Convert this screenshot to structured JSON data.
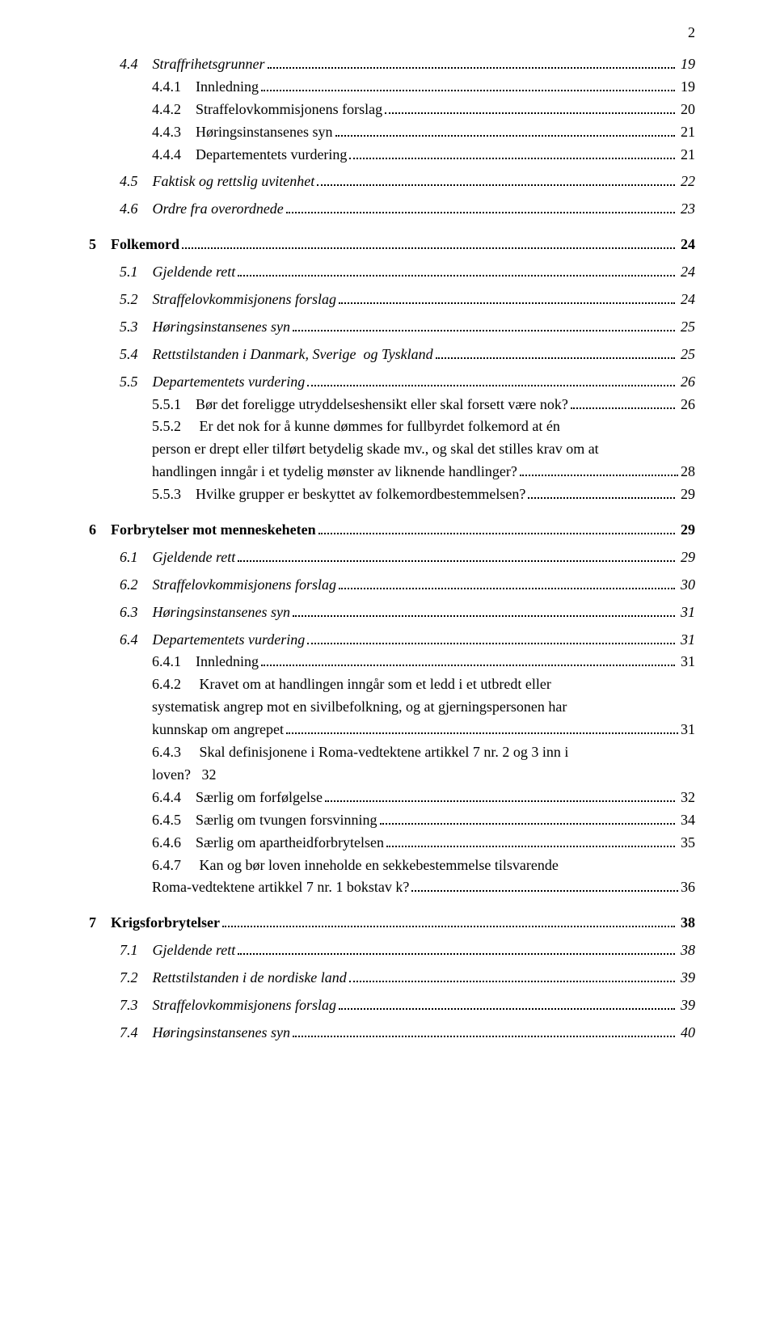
{
  "page_number": "2",
  "entries": [
    {
      "k": "line",
      "cls": "indent1 italic",
      "label": "4.4",
      "title": "Straffrihetsgrunner",
      "page": "19",
      "gap": "s"
    },
    {
      "k": "line",
      "cls": "indent2",
      "label": "4.4.1",
      "title": "Innledning",
      "page": "19"
    },
    {
      "k": "line",
      "cls": "indent2",
      "label": "4.4.2",
      "title": "Straffelovkommisjonens forslag",
      "page": "20"
    },
    {
      "k": "line",
      "cls": "indent2",
      "label": "4.4.3",
      "title": "Høringsinstansenes syn",
      "page": "21"
    },
    {
      "k": "line",
      "cls": "indent2",
      "label": "4.4.4",
      "title": "Departementets vurdering",
      "page": "21",
      "gap_after": "s"
    },
    {
      "k": "line",
      "cls": "indent1 italic",
      "label": "4.5",
      "title": "Faktisk og rettslig uvitenhet",
      "page": "22",
      "gap_after": "s"
    },
    {
      "k": "line",
      "cls": "indent1 italic",
      "label": "4.6",
      "title": "Ordre fra overordnede",
      "page": "23",
      "gap_after": "m"
    },
    {
      "k": "line",
      "cls": "bold",
      "label": "5",
      "title": "Folkemord",
      "page": "24",
      "gap_after": "s"
    },
    {
      "k": "line",
      "cls": "indent1 italic",
      "label": "5.1",
      "title": "Gjeldende rett",
      "page": "24",
      "gap_after": "s"
    },
    {
      "k": "line",
      "cls": "indent1 italic",
      "label": "5.2",
      "title": "Straffelovkommisjonens forslag",
      "page": "24",
      "gap_after": "s"
    },
    {
      "k": "line",
      "cls": "indent1 italic",
      "label": "5.3",
      "title": "Høringsinstansenes syn",
      "page": "25",
      "gap_after": "s"
    },
    {
      "k": "line",
      "cls": "indent1 italic",
      "label": "5.4",
      "title": "Rettstilstanden i Danmark, Sverige  og Tyskland",
      "page": "25",
      "gap_after": "s"
    },
    {
      "k": "line",
      "cls": "indent1 italic",
      "label": "5.5",
      "title": "Departementets vurdering",
      "page": "26"
    },
    {
      "k": "line",
      "cls": "indent2",
      "label": "5.5.1",
      "title": "Bør det foreligge utryddelseshensikt eller skal forsett være nok?",
      "page": "26"
    },
    {
      "k": "multi",
      "cls": "indent2",
      "lines": [
        "5.5.2     Er det nok for å kunne dømmes for fullbyrdet folkemord at én",
        "person er drept eller tilført betydelig skade mv., og skal det stilles krav om at",
        "handlingen inngår i et tydelig mønster av liknende handlinger?"
      ],
      "page": "28"
    },
    {
      "k": "line",
      "cls": "indent2",
      "label": "5.5.3",
      "title": "Hvilke grupper er beskyttet av folkemordbestemmelsen?",
      "page": "29",
      "gap_after": "m"
    },
    {
      "k": "line",
      "cls": "bold",
      "label": "6",
      "title": "Forbrytelser mot menneskeheten",
      "page": "29",
      "gap_after": "s"
    },
    {
      "k": "line",
      "cls": "indent1 italic",
      "label": "6.1",
      "title": "Gjeldende rett",
      "page": "29",
      "gap_after": "s"
    },
    {
      "k": "line",
      "cls": "indent1 italic",
      "label": "6.2",
      "title": "Straffelovkommisjonens forslag",
      "page": "30",
      "gap_after": "s"
    },
    {
      "k": "line",
      "cls": "indent1 italic",
      "label": "6.3",
      "title": "Høringsinstansenes syn",
      "page": "31",
      "gap_after": "s"
    },
    {
      "k": "line",
      "cls": "indent1 italic",
      "label": "6.4",
      "title": "Departementets vurdering",
      "page": "31"
    },
    {
      "k": "line",
      "cls": "indent2",
      "label": "6.4.1",
      "title": "Innledning",
      "page": "31"
    },
    {
      "k": "multi",
      "cls": "indent2",
      "lines": [
        "6.4.2     Kravet om at handlingen inngår som et ledd i et utbredt eller",
        "systematisk angrep mot en sivilbefolkning, og at gjerningspersonen har",
        "kunnskap om angrepet"
      ],
      "page": "31"
    },
    {
      "k": "multi",
      "cls": "indent2",
      "lines": [
        "6.4.3     Skal definisjonene i Roma-vedtektene artikkel 7 nr. 2 og 3 inn i",
        "loven?   32"
      ],
      "nopage": true
    },
    {
      "k": "line",
      "cls": "indent2",
      "label": "6.4.4",
      "title": "Særlig om forfølgelse",
      "page": "32"
    },
    {
      "k": "line",
      "cls": "indent2",
      "label": "6.4.5",
      "title": "Særlig om tvungen forsvinning",
      "page": "34"
    },
    {
      "k": "line",
      "cls": "indent2",
      "label": "6.4.6",
      "title": "Særlig om apartheidforbrytelsen",
      "page": "35"
    },
    {
      "k": "multi",
      "cls": "indent2",
      "lines": [
        "6.4.7     Kan og bør loven inneholde en sekkebestemmelse tilsvarende",
        "Roma-vedtektene artikkel 7 nr. 1 bokstav k?"
      ],
      "page": "36",
      "gap_after": "m"
    },
    {
      "k": "line",
      "cls": "bold",
      "label": "7",
      "title": "Krigsforbrytelser",
      "page": "38",
      "gap_after": "s"
    },
    {
      "k": "line",
      "cls": "indent1 italic",
      "label": "7.1",
      "title": "Gjeldende rett",
      "page": "38",
      "gap_after": "s"
    },
    {
      "k": "line",
      "cls": "indent1 italic",
      "label": "7.2",
      "title": "Rettstilstanden i de nordiske land",
      "page": "39",
      "gap_after": "s"
    },
    {
      "k": "line",
      "cls": "indent1 italic",
      "label": "7.3",
      "title": "Straffelovkommisjonens forslag",
      "page": "39",
      "gap_after": "s"
    },
    {
      "k": "line",
      "cls": "indent1 italic",
      "label": "7.4",
      "title": "Høringsinstansenes syn",
      "page": "40"
    }
  ]
}
